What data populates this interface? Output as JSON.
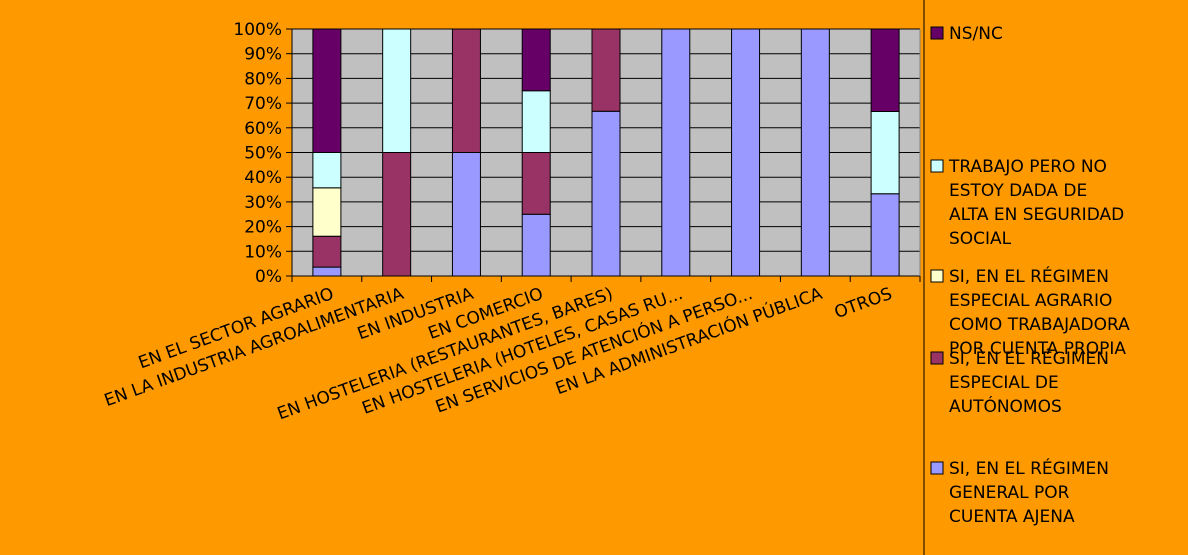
{
  "colors": {
    "page_background": "#ff9900",
    "plot_background": "#c0c0c0",
    "gridline": "#000000"
  },
  "chart_data": {
    "type": "bar",
    "stacked": "percent",
    "title": "",
    "xlabel": "",
    "ylabel": "",
    "ylim": [
      0,
      100
    ],
    "y_ticks": [
      "0%",
      "10%",
      "20%",
      "30%",
      "40%",
      "50%",
      "60%",
      "70%",
      "80%",
      "90%",
      "100%"
    ],
    "grid": true,
    "legend_position": "right",
    "categories": [
      "EN EL SECTOR AGRARIO",
      "EN LA INDUSTRIA AGROALIMENTARIA",
      "EN INDUSTRIA",
      "EN COMERCIO",
      "EN HOSTELERIA (RESTAURANTES, BARES)",
      "EN HOSTELERIA (HOTELES, CASAS RU...",
      "EN SERVICIOS DE ATENCIÓN A PERSO...",
      "EN LA ADMINISTRACIÓN PÚBLICA",
      "OTROS"
    ],
    "series": [
      {
        "name": "SI, EN EL RÉGIMEN GENERAL POR CUENTA AJENA",
        "color": "#9999ff",
        "values": [
          3.6,
          0,
          50,
          25,
          66.7,
          100,
          100,
          100,
          33.3
        ]
      },
      {
        "name": "SI, EN EL RÉGIMEN ESPECIAL DE AUTÓNOMOS",
        "color": "#993366",
        "values": [
          12.5,
          50,
          50,
          25,
          33.3,
          0,
          0,
          0,
          0
        ]
      },
      {
        "name": "SI, EN EL RÉGIMEN ESPECIAL AGRARIO COMO TRABAJADORA POR CUENTA PROPIA",
        "color": "#ffffcc",
        "values": [
          19.6,
          0,
          0,
          0,
          0,
          0,
          0,
          0,
          0
        ]
      },
      {
        "name": "TRABAJO PERO NO ESTOY DADA DE ALTA EN SEGURIDAD SOCIAL",
        "color": "#ccffff",
        "values": [
          14.3,
          50,
          0,
          25,
          0,
          0,
          0,
          0,
          33.3
        ]
      },
      {
        "name": "NS/NC",
        "color": "#660066",
        "values": [
          50,
          0,
          0,
          25,
          0,
          0,
          0,
          0,
          33.4
        ]
      }
    ],
    "legend": [
      {
        "lines": [
          "NS/NC"
        ],
        "color": "#660066"
      },
      {
        "lines": [
          "TRABAJO PERO NO",
          "ESTOY DADA DE",
          "ALTA EN SEGURIDAD",
          "SOCIAL"
        ],
        "color": "#ccffff"
      },
      {
        "lines": [
          "SI, EN EL RÉGIMEN",
          "ESPECIAL AGRARIO",
          "COMO TRABAJADORA",
          "POR CUENTA PROPIA"
        ],
        "color": "#ffffcc"
      },
      {
        "lines": [
          "SI, EN EL RÉGIMEN",
          "ESPECIAL DE",
          "AUTÓNOMOS"
        ],
        "color": "#993366"
      },
      {
        "lines": [
          "SI, EN EL RÉGIMEN",
          "GENERAL POR",
          "CUENTA AJENA"
        ],
        "color": "#9999ff"
      }
    ]
  }
}
